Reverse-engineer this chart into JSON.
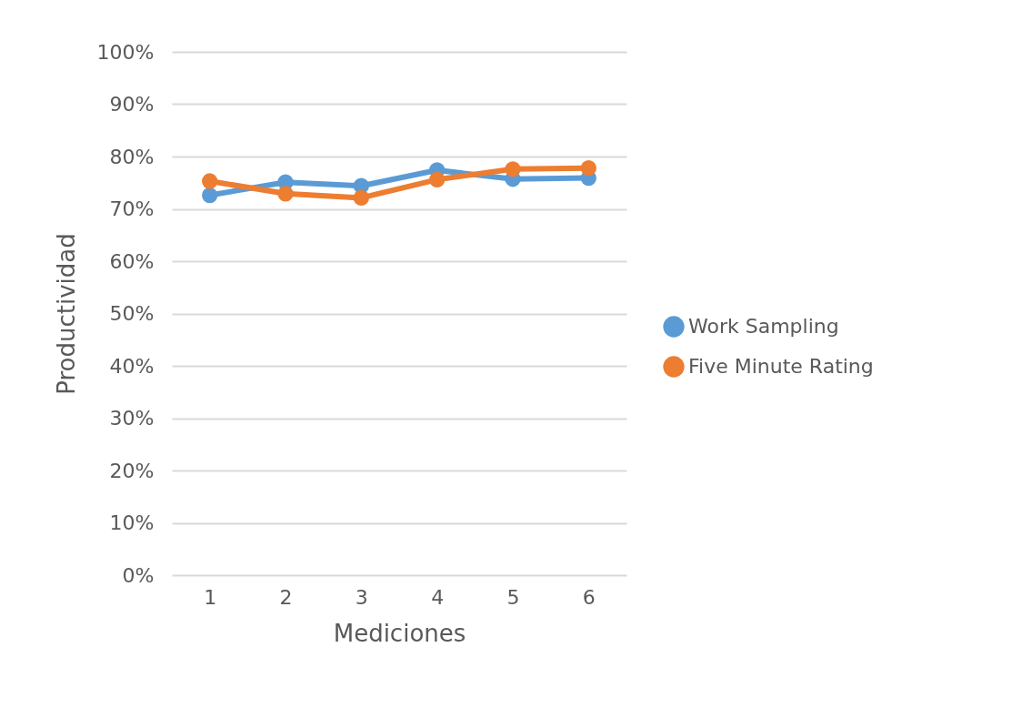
{
  "chart_data": {
    "type": "line",
    "xlabel": "Mediciones",
    "ylabel": "Productividad",
    "categories": [
      "1",
      "2",
      "3",
      "4",
      "5",
      "6"
    ],
    "series": [
      {
        "name": "Work Sampling",
        "color": "#5b9bd5",
        "values": [
          72.6,
          75.1,
          74.4,
          77.4,
          75.7,
          75.9
        ]
      },
      {
        "name": "Five Minute Rating",
        "color": "#ed7d31",
        "values": [
          75.3,
          72.9,
          72.1,
          75.6,
          77.6,
          77.8
        ]
      }
    ],
    "ylim": [
      0,
      100
    ],
    "yticks": [
      {
        "value": 0,
        "label": "0%"
      },
      {
        "value": 10,
        "label": "10%"
      },
      {
        "value": 20,
        "label": "20%"
      },
      {
        "value": 30,
        "label": "30%"
      },
      {
        "value": 40,
        "label": "40%"
      },
      {
        "value": 50,
        "label": "50%"
      },
      {
        "value": 60,
        "label": "60%"
      },
      {
        "value": 70,
        "label": "70%"
      },
      {
        "value": 80,
        "label": "80%"
      },
      {
        "value": 90,
        "label": "90%"
      },
      {
        "value": 100,
        "label": "100%"
      }
    ],
    "grid": "y",
    "legend": "right",
    "marker": "circle",
    "line_style": "solid"
  }
}
